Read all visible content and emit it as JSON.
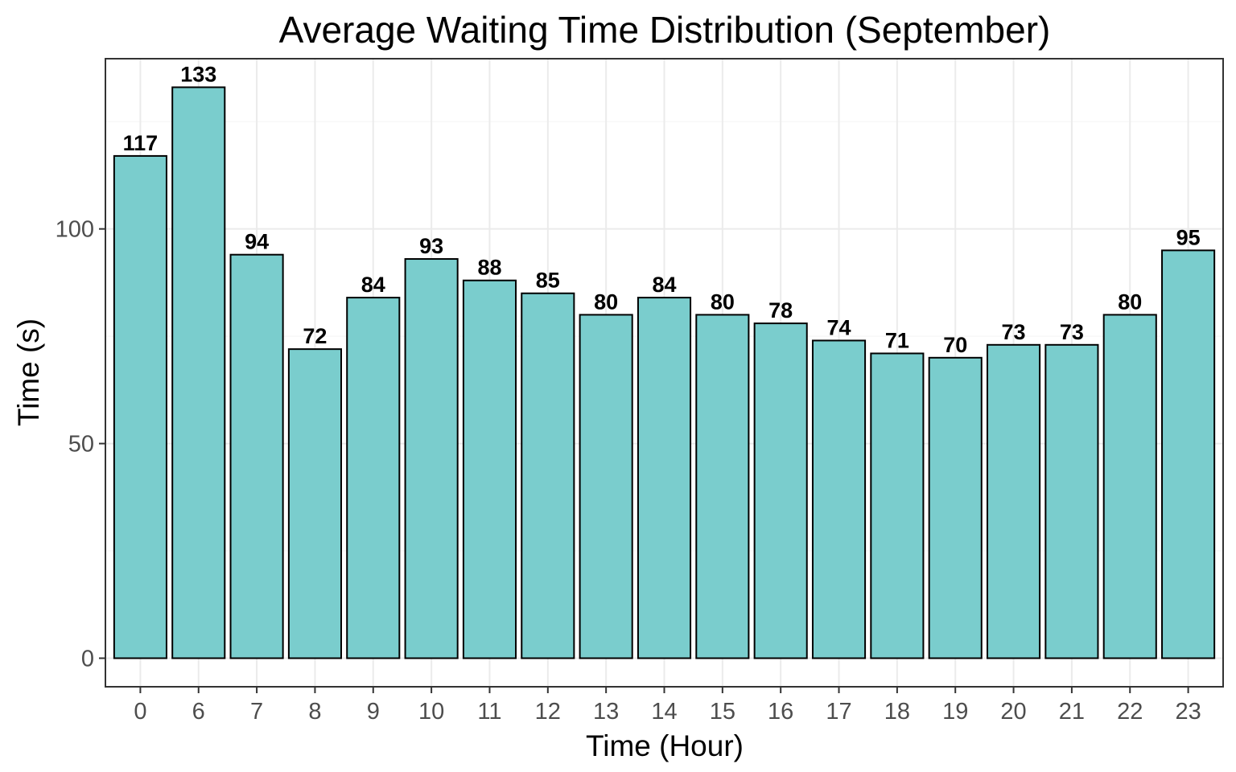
{
  "chart_data": {
    "type": "bar",
    "title": "Average Waiting Time Distribution (September)",
    "xlabel": "Time (Hour)",
    "ylabel": "Time (s)",
    "categories": [
      "0",
      "6",
      "7",
      "8",
      "9",
      "10",
      "11",
      "12",
      "13",
      "14",
      "15",
      "16",
      "17",
      "18",
      "19",
      "20",
      "21",
      "22",
      "23"
    ],
    "values": [
      117,
      133,
      94,
      72,
      84,
      93,
      88,
      85,
      80,
      84,
      80,
      78,
      74,
      71,
      70,
      73,
      73,
      80,
      95
    ],
    "data_labels": [
      "117",
      "133",
      "94",
      "72",
      "84",
      "93",
      "88",
      "85",
      "80",
      "84",
      "80",
      "78",
      "74",
      "71",
      "70",
      "73",
      "73",
      "80",
      "95"
    ],
    "y_ticks": [
      0,
      50,
      100
    ],
    "y_tick_labels": [
      "0",
      "50",
      "100"
    ],
    "ylim": [
      -6.65,
      139.65
    ],
    "grid": true,
    "legend": "none",
    "bar_color": "#7ACDCD",
    "bar_outline_color": "#000000"
  }
}
